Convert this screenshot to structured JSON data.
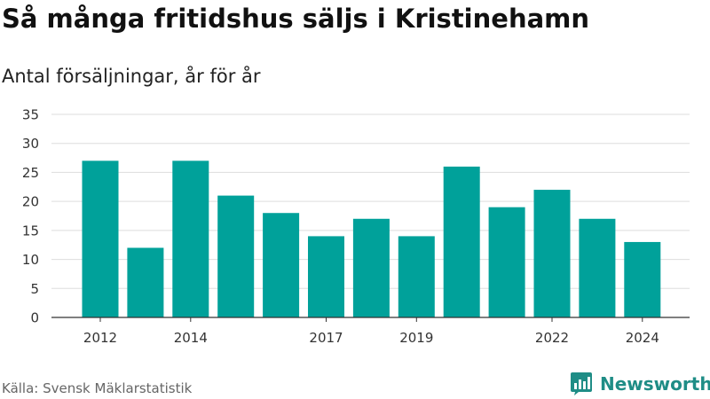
{
  "header": {
    "title": "Så många fritidshus säljs i Kristinehamn",
    "subtitle": "Antal försäljningar, år för år"
  },
  "footer": {
    "source": "Källa: Svensk Mäklarstatistik",
    "brand": "Newsworthy",
    "brand_icon": "newsworthy-logo-icon"
  },
  "colors": {
    "bar": "#00a19a",
    "grid": "#dddddd",
    "brand": "#1f8d86"
  },
  "chart_data": {
    "type": "bar",
    "x": [
      2012,
      2013,
      2014,
      2015,
      2016,
      2017,
      2018,
      2019,
      2020,
      2021,
      2022,
      2023,
      2024
    ],
    "values": [
      27,
      12,
      27,
      21,
      18,
      14,
      17,
      14,
      26,
      19,
      22,
      17,
      13
    ],
    "x_tick_labels": [
      "2012",
      "2014",
      "2017",
      "2019",
      "2022",
      "2024"
    ],
    "y_ticks": [
      0,
      5,
      10,
      15,
      20,
      25,
      30,
      35
    ],
    "ylim": [
      0,
      35
    ],
    "grid": true,
    "legend": "none"
  }
}
